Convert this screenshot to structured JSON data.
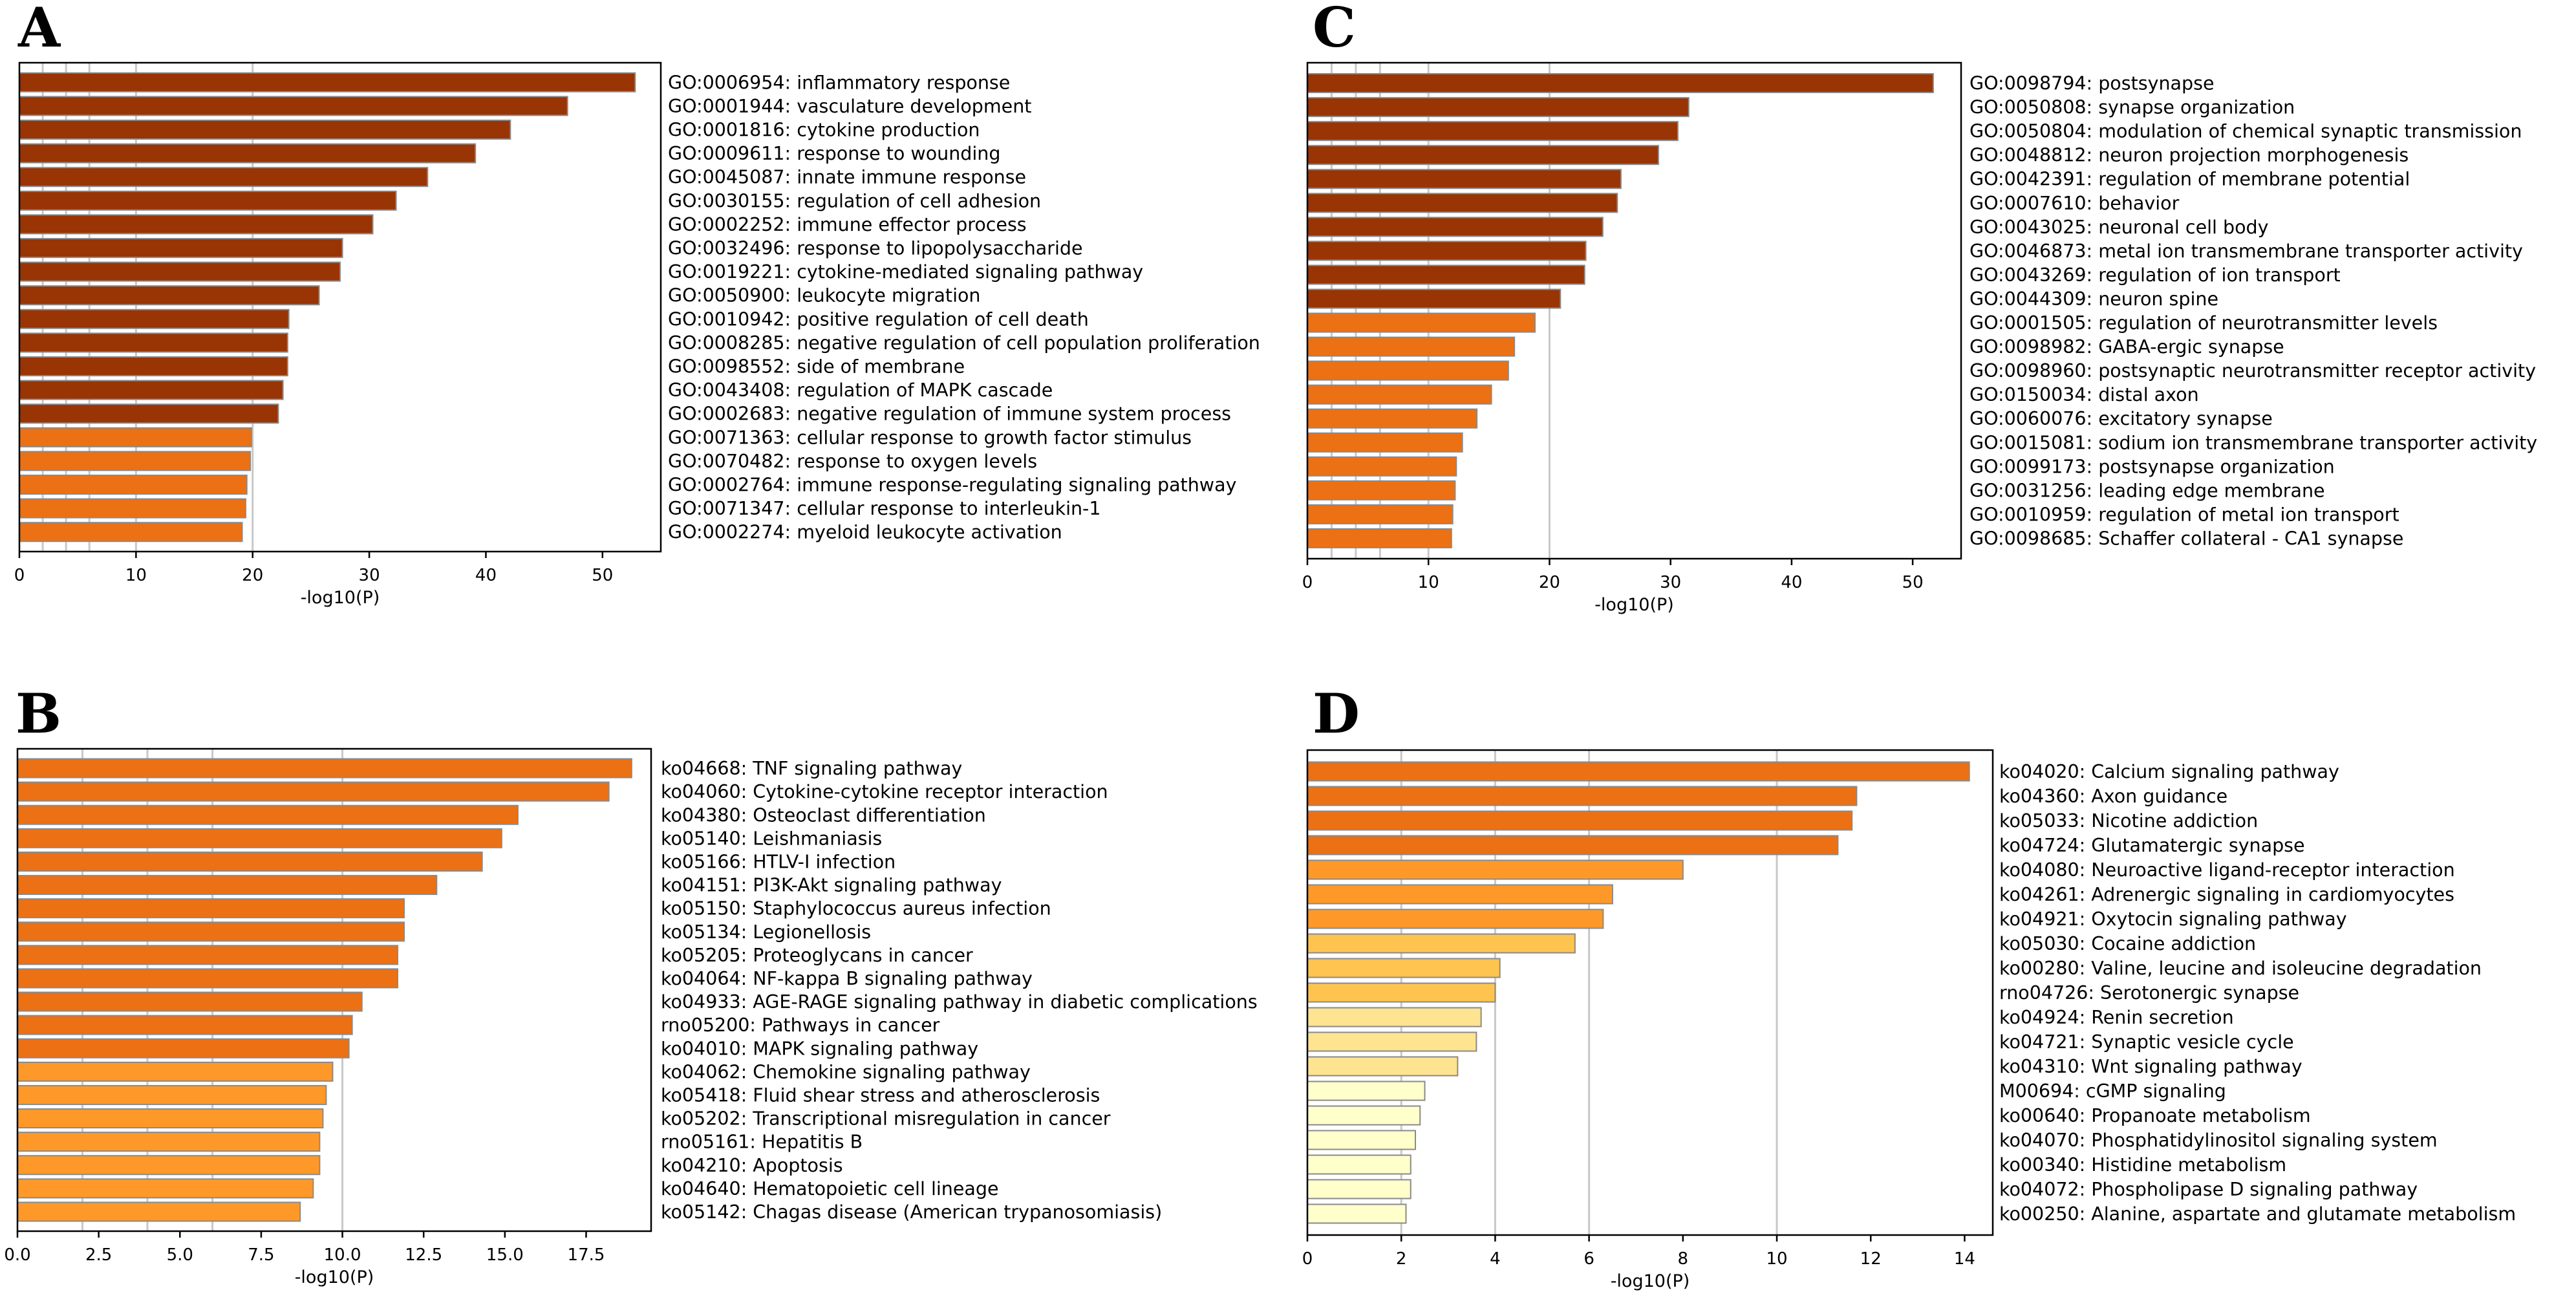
{
  "colors": {
    "bar_stroke": "#8a8a8a",
    "grid": "#c8c8c8",
    "frame": "#000000",
    "text": "#000000"
  },
  "chart_data": [
    {
      "panel": "A",
      "type": "bar",
      "orientation": "horizontal",
      "xlabel": "-log10(P)",
      "xlim": [
        0,
        55
      ],
      "xticks": [
        0,
        10,
        20,
        30,
        40,
        50
      ],
      "xtick_labels": [
        "0",
        "10",
        "20",
        "30",
        "40",
        "50"
      ],
      "minor_gridlines": [
        2,
        4,
        6,
        10,
        20
      ],
      "categories": [
        "GO:0006954: inflammatory response",
        "GO:0001944: vasculature development",
        "GO:0001816: cytokine production",
        "GO:0009611: response to wounding",
        "GO:0045087: innate immune response",
        "GO:0030155: regulation of cell adhesion",
        "GO:0002252: immune effector process",
        "GO:0032496: response to lipopolysaccharide",
        "GO:0019221: cytokine-mediated signaling pathway",
        "GO:0050900: leukocyte migration",
        "GO:0010942: positive regulation of cell death",
        "GO:0008285: negative regulation of cell population proliferation",
        "GO:0098552: side of membrane",
        "GO:0043408: regulation of MAPK cascade",
        "GO:0002683: negative regulation of immune system process",
        "GO:0071363: cellular response to growth factor stimulus",
        "GO:0070482: response to oxygen levels",
        "GO:0002764: immune response-regulating signaling pathway",
        "GO:0071347: cellular response to interleukin-1",
        "GO:0002274: myeloid leukocyte activation"
      ],
      "values": [
        52.8,
        47.0,
        42.1,
        39.1,
        35.0,
        32.3,
        30.3,
        27.7,
        27.5,
        25.7,
        23.1,
        23.0,
        23.0,
        22.6,
        22.2,
        19.9,
        19.8,
        19.5,
        19.4,
        19.1
      ],
      "bar_colors": [
        "#993404",
        "#993404",
        "#993404",
        "#993404",
        "#993404",
        "#993404",
        "#993404",
        "#993404",
        "#993404",
        "#993404",
        "#993404",
        "#993404",
        "#993404",
        "#993404",
        "#993404",
        "#ec7014",
        "#ec7014",
        "#ec7014",
        "#ec7014",
        "#ec7014"
      ]
    },
    {
      "panel": "B",
      "type": "bar",
      "orientation": "horizontal",
      "xlabel": "-log10(P)",
      "xlim": [
        0,
        19.5
      ],
      "xticks": [
        0,
        2.5,
        5,
        7.5,
        10,
        12.5,
        15,
        17.5
      ],
      "xtick_labels": [
        "0.0",
        "2.5",
        "5.0",
        "7.5",
        "10.0",
        "12.5",
        "15.0",
        "17.5"
      ],
      "minor_gridlines": [
        2,
        4,
        6,
        10
      ],
      "categories": [
        "ko04668: TNF signaling pathway",
        "ko04060: Cytokine-cytokine receptor interaction",
        "ko04380: Osteoclast differentiation",
        "ko05140: Leishmaniasis",
        "ko05166: HTLV-I infection",
        "ko04151: PI3K-Akt signaling pathway",
        "ko05150: Staphylococcus aureus infection",
        "ko05134: Legionellosis",
        "ko05205: Proteoglycans in cancer",
        "ko04064: NF-kappa B signaling pathway",
        "ko04933: AGE-RAGE signaling pathway in diabetic complications",
        "rno05200: Pathways in cancer",
        "ko04010: MAPK signaling pathway",
        "ko04062: Chemokine signaling pathway",
        "ko05418: Fluid shear stress and atherosclerosis",
        "ko05202: Transcriptional misregulation in cancer",
        "rno05161: Hepatitis B",
        "ko04210: Apoptosis",
        "ko04640: Hematopoietic cell lineage",
        "ko05142: Chagas disease (American trypanosomiasis)"
      ],
      "values": [
        18.9,
        18.2,
        15.4,
        14.9,
        14.3,
        12.9,
        11.9,
        11.9,
        11.7,
        11.7,
        10.6,
        10.3,
        10.2,
        9.7,
        9.5,
        9.4,
        9.3,
        9.3,
        9.1,
        8.7
      ],
      "bar_colors": [
        "#ec7014",
        "#ec7014",
        "#ec7014",
        "#ec7014",
        "#ec7014",
        "#ec7014",
        "#ec7014",
        "#ec7014",
        "#ec7014",
        "#ec7014",
        "#ec7014",
        "#ec7014",
        "#ec7014",
        "#fe9929",
        "#fe9929",
        "#fe9929",
        "#fe9929",
        "#fe9929",
        "#fe9929",
        "#fe9929"
      ]
    },
    {
      "panel": "C",
      "type": "bar",
      "orientation": "horizontal",
      "xlabel": "-log10(P)",
      "xlim": [
        0,
        54
      ],
      "xticks": [
        0,
        10,
        20,
        30,
        40,
        50
      ],
      "xtick_labels": [
        "0",
        "10",
        "20",
        "30",
        "40",
        "50"
      ],
      "minor_gridlines": [
        2,
        4,
        6,
        10,
        20
      ],
      "categories": [
        "GO:0098794: postsynapse",
        "GO:0050808: synapse organization",
        "GO:0050804: modulation of chemical synaptic transmission",
        "GO:0048812: neuron projection morphogenesis",
        "GO:0042391: regulation of membrane potential",
        "GO:0007610: behavior",
        "GO:0043025: neuronal cell body",
        "GO:0046873: metal ion transmembrane transporter activity",
        "GO:0043269: regulation of ion transport",
        "GO:0044309: neuron spine",
        "GO:0001505: regulation of neurotransmitter levels",
        "GO:0098982: GABA-ergic synapse",
        "GO:0098960: postsynaptic neurotransmitter receptor activity",
        "GO:0150034: distal axon",
        "GO:0060076: excitatory synapse",
        "GO:0015081: sodium ion transmembrane transporter activity",
        "GO:0099173: postsynapse organization",
        "GO:0031256: leading edge membrane",
        "GO:0010959: regulation of metal ion transport",
        "GO:0098685: Schaffer collateral - CA1 synapse"
      ],
      "values": [
        51.7,
        31.5,
        30.6,
        29.0,
        25.9,
        25.6,
        24.4,
        23.0,
        22.9,
        20.9,
        18.8,
        17.1,
        16.6,
        15.2,
        14.0,
        12.8,
        12.3,
        12.2,
        12.0,
        11.9
      ],
      "bar_colors": [
        "#993404",
        "#993404",
        "#993404",
        "#993404",
        "#993404",
        "#993404",
        "#993404",
        "#993404",
        "#993404",
        "#993404",
        "#ec7014",
        "#ec7014",
        "#ec7014",
        "#ec7014",
        "#ec7014",
        "#ec7014",
        "#ec7014",
        "#ec7014",
        "#ec7014",
        "#ec7014"
      ]
    },
    {
      "panel": "D",
      "type": "bar",
      "orientation": "horizontal",
      "xlabel": "-log10(P)",
      "xlim": [
        0,
        14.6
      ],
      "xticks": [
        0,
        2,
        4,
        6,
        8,
        10,
        12,
        14
      ],
      "xtick_labels": [
        "0",
        "2",
        "4",
        "6",
        "8",
        "10",
        "12",
        "14"
      ],
      "minor_gridlines": [
        2,
        4,
        6,
        10
      ],
      "categories": [
        "ko04020: Calcium signaling pathway",
        "ko04360: Axon guidance",
        "ko05033: Nicotine addiction",
        "ko04724: Glutamatergic synapse",
        "ko04080: Neuroactive ligand-receptor interaction",
        "ko04261: Adrenergic signaling in cardiomyocytes",
        "ko04921: Oxytocin signaling pathway",
        "ko05030: Cocaine addiction",
        "ko00280: Valine, leucine and isoleucine degradation",
        "rno04726: Serotonergic synapse",
        "ko04924: Renin secretion",
        "ko04721: Synaptic vesicle cycle",
        "ko04310: Wnt signaling pathway",
        "M00694: cGMP signaling",
        "ko00640: Propanoate metabolism",
        "ko04070: Phosphatidylinositol signaling system",
        "ko00340: Histidine metabolism",
        "ko04072: Phospholipase D signaling pathway",
        "ko00250: Alanine, aspartate and glutamate metabolism"
      ],
      "values": [
        14.1,
        11.7,
        11.6,
        11.3,
        8.0,
        6.5,
        6.3,
        5.7,
        4.1,
        4.0,
        3.7,
        3.6,
        3.2,
        2.5,
        2.4,
        2.3,
        2.2,
        2.2,
        2.1
      ],
      "bar_colors": [
        "#ec7014",
        "#ec7014",
        "#ec7014",
        "#ec7014",
        "#fe9929",
        "#fe9929",
        "#fe9929",
        "#fec44f",
        "#fec44f",
        "#fec44f",
        "#fee391",
        "#fee391",
        "#fee391",
        "#ffffcc",
        "#ffffcc",
        "#ffffcc",
        "#ffffcc",
        "#ffffcc",
        "#ffffcc"
      ]
    }
  ]
}
